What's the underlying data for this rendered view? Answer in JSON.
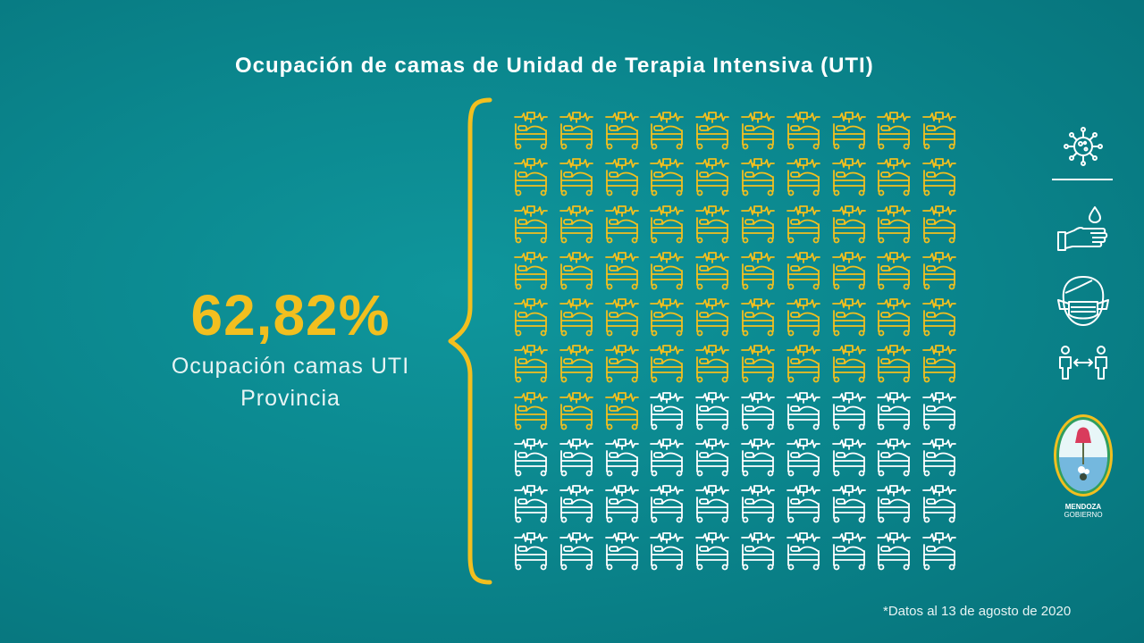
{
  "title": "Ocupación de camas de Unidad de Terapia Intensiva (UTI)",
  "percent_label": "62,82%",
  "caption_line1": "Ocupación camas UTI",
  "caption_line2": "Provincia",
  "footnote": "*Datos al 13 de agosto de 2020",
  "logo": {
    "line1": "MENDOZA",
    "line2": "GOBIERNO"
  },
  "colors": {
    "occupied": "#f2bf1f",
    "free": "#ffffff",
    "background": "#0b878e"
  },
  "side_icons": [
    "virus-icon",
    "handwash-icon",
    "face-mask-icon",
    "social-distance-icon",
    "mendoza-shield-icon"
  ],
  "chart_data": {
    "type": "icon-array",
    "title": "Ocupación de camas de Unidad de Terapia Intensiva (UTI)",
    "total_units": 100,
    "rows": 10,
    "columns": 10,
    "occupied_percent": 62.82,
    "occupied_units_shown": 63,
    "series": [
      {
        "name": "",
        "values": [
          63
        ],
        "color": "#f2bf1f"
      },
      {
        "name": "",
        "values": [
          37
        ],
        "color": "#ffffff"
      }
    ]
  }
}
